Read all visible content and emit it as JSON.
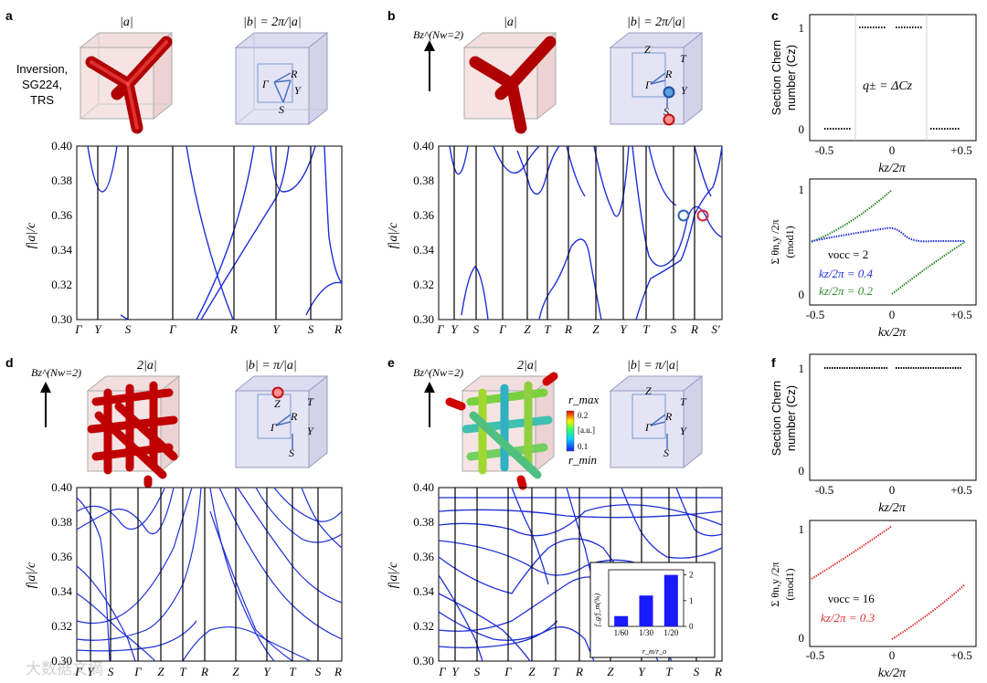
{
  "panels": {
    "a": {
      "letter": "a",
      "real_title": "|a|",
      "recip_title": "|b| = 2π/|a|",
      "side_label_lines": [
        "Inversion,",
        "SG224,",
        "TRS"
      ],
      "ylabel": "f|a|/c",
      "hs_points": [
        "R",
        "Γ",
        "Y",
        "S"
      ],
      "yticks": [
        "0.30",
        "0.32",
        "0.34",
        "0.36",
        "0.38",
        "0.40"
      ],
      "kpath": [
        "Γ",
        "Y",
        "S",
        "Γ",
        "R",
        "Y",
        "S",
        "R"
      ]
    },
    "b": {
      "letter": "b",
      "field_label": "Bz^(Nw=2)",
      "real_title": "|a|",
      "recip_title": "|b| = 2π/|a|",
      "ylabel": "f|a|/c",
      "hs_points": [
        "Z",
        "T",
        "R",
        "Γ",
        "Y",
        "S"
      ],
      "yticks": [
        "0.30",
        "0.32",
        "0.34",
        "0.36",
        "0.38",
        "0.40"
      ],
      "kpath": [
        "Γ",
        "Y",
        "S",
        "Γ",
        "Z",
        "T",
        "R",
        "Z",
        "Y",
        "T",
        "S",
        "R",
        "S′"
      ]
    },
    "c": {
      "letter": "c",
      "top": {
        "ylabel_lines": [
          "Section Chern",
          "number (Cz)"
        ],
        "annotation": "q± = ΔCz",
        "xlabel": "kz/2π",
        "yticks": [
          "0",
          "1"
        ],
        "xticks": [
          "-0.5",
          "0",
          "+0.5"
        ]
      },
      "bottom": {
        "ylabel_lines": [
          "Σ θn,y /2π",
          "(mod1)"
        ],
        "legend": [
          "νocc = 2",
          "kz/2π = 0.4",
          "kz/2π = 0.2"
        ],
        "xlabel": "kx/2π",
        "yticks": [
          "0",
          "1"
        ],
        "xticks": [
          "-0.5",
          "0",
          "+0.5"
        ]
      }
    },
    "d": {
      "letter": "d",
      "field_label": "Bz^(Nw=2)",
      "real_title": "2|a|",
      "recip_title": "|b| = π/|a|",
      "ylabel": "f|a|/c",
      "hs_points": [
        "Z",
        "T",
        "R",
        "Γ",
        "Y",
        "S"
      ],
      "yticks": [
        "0.30",
        "0.32",
        "0.34",
        "0.36",
        "0.38",
        "0.40"
      ],
      "kpath": [
        "Γ",
        "Y",
        "S",
        "Γ",
        "Z",
        "T",
        "R",
        "Z",
        "Y",
        "T",
        "S",
        "R"
      ]
    },
    "e": {
      "letter": "e",
      "field_label": "Bz^(Nw=2)",
      "real_title": "2|a|",
      "recip_title": "|b| = π/|a|",
      "colorbar": {
        "max_label": "r_max",
        "min_label": "r_min",
        "top": "0.2",
        "unit": "[a.u.]",
        "bottom": "0.1"
      },
      "ylabel": "f|a|/c",
      "hs_points": [
        "Z",
        "T",
        "R",
        "Γ",
        "Y",
        "S"
      ],
      "yticks": [
        "0.30",
        "0.32",
        "0.34",
        "0.36",
        "0.38",
        "0.40"
      ],
      "kpath": [
        "Γ",
        "Y",
        "S",
        "Γ",
        "Z",
        "T",
        "R",
        "Z",
        "Y",
        "T",
        "S",
        "R"
      ]
    },
    "f": {
      "letter": "f",
      "top": {
        "ylabel_lines": [
          "Section Chern",
          "number (Cz)"
        ],
        "xlabel": "kz/2π",
        "yticks": [
          "0",
          "1"
        ],
        "xticks": [
          "-0.5",
          "0",
          "+0.5"
        ]
      },
      "bottom": {
        "ylabel_lines": [
          "Σ θn,y /2π",
          "(mod1)"
        ],
        "legend": [
          "νocc = 16",
          "kz/2π = 0.3"
        ],
        "xlabel": "kx/2π",
        "yticks": [
          "0",
          "1"
        ],
        "xticks": [
          "-0.5",
          "0",
          "+0.5"
        ]
      }
    }
  },
  "watermark": "大数据文摘",
  "colors": {
    "band": "#1f2fd8",
    "axis": "#000000",
    "blue_mark": "#2f62b8",
    "red_mark": "#d6243b",
    "green": "#2a8a2a",
    "red_curve": "#e23030"
  },
  "chart_data": [
    {
      "type": "bar",
      "title": "",
      "categories": [
        "1/60",
        "1/30",
        "1/20"
      ],
      "values": [
        0.4,
        1.2,
        2.0
      ],
      "xlabel": "r_m/r_o",
      "ylabel": "f_g/f_m(%)",
      "yticks": [
        "0",
        "1",
        "2"
      ],
      "ylim": [
        0,
        2.2
      ]
    }
  ]
}
